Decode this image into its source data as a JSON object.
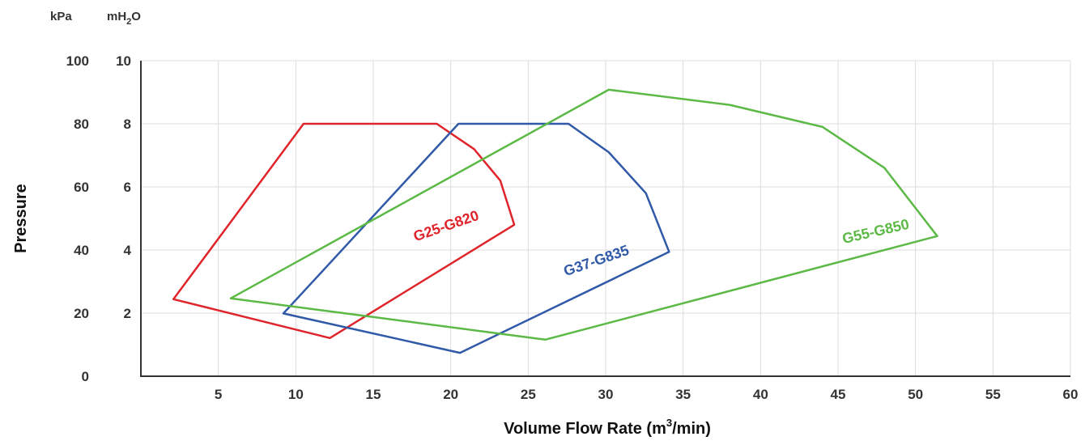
{
  "chart_data": {
    "type": "area",
    "xlabel": "Volume Flow Rate (m",
    "xlabel_sup": "3",
    "xlabel_end": "/min)",
    "ylabel": "Pressure",
    "y_units": {
      "kpa": "kPa",
      "mh2o_main": "mH",
      "mh2o_sub": "2",
      "mh2o_end": "O"
    },
    "xlim": [
      0,
      60
    ],
    "ylim": [
      0,
      100
    ],
    "x_ticks": [
      "5",
      "10",
      "15",
      "20",
      "25",
      "30",
      "35",
      "40",
      "45",
      "50",
      "55",
      "60"
    ],
    "x_tick_values": [
      5,
      10,
      15,
      20,
      25,
      30,
      35,
      40,
      45,
      50,
      55,
      60
    ],
    "y_ticks_kpa": [
      "0",
      "20",
      "40",
      "60",
      "80",
      "100"
    ],
    "y_ticks_mh2o": [
      "",
      "2",
      "4",
      "6",
      "8",
      "10"
    ],
    "y_tick_values": [
      0,
      20,
      40,
      60,
      80,
      100
    ],
    "grid": true,
    "series": [
      {
        "name": "G25-G820",
        "color": "#e0242b",
        "label_at": [
          19.8,
          46.2
        ],
        "label_angle": -19,
        "points": [
          [
            2.1,
            24.4
          ],
          [
            10.5,
            80
          ],
          [
            19.1,
            80
          ],
          [
            21.5,
            72
          ],
          [
            23.2,
            62
          ],
          [
            24.1,
            48
          ],
          [
            12.2,
            12.1
          ],
          [
            2.1,
            24.4
          ]
        ]
      },
      {
        "name": "G37-G835",
        "color": "#3059a8",
        "label_at": [
          29.5,
          35.2
        ],
        "label_angle": -19,
        "points": [
          [
            9.2,
            19.9
          ],
          [
            20.5,
            80
          ],
          [
            27.6,
            80
          ],
          [
            30.2,
            71
          ],
          [
            32.6,
            58
          ],
          [
            34.1,
            39.4
          ],
          [
            20.6,
            7.4
          ],
          [
            9.2,
            19.9
          ]
        ]
      },
      {
        "name": "G55-G850",
        "color": "#5cb946",
        "label_at": [
          47.5,
          44.4
        ],
        "label_angle": -13,
        "points": [
          [
            5.8,
            24.7
          ],
          [
            30.2,
            90.8
          ],
          [
            38.0,
            86
          ],
          [
            44.0,
            79
          ],
          [
            48.0,
            66
          ],
          [
            51.4,
            44.4
          ],
          [
            26.1,
            11.6
          ],
          [
            5.8,
            24.7
          ]
        ]
      }
    ]
  }
}
